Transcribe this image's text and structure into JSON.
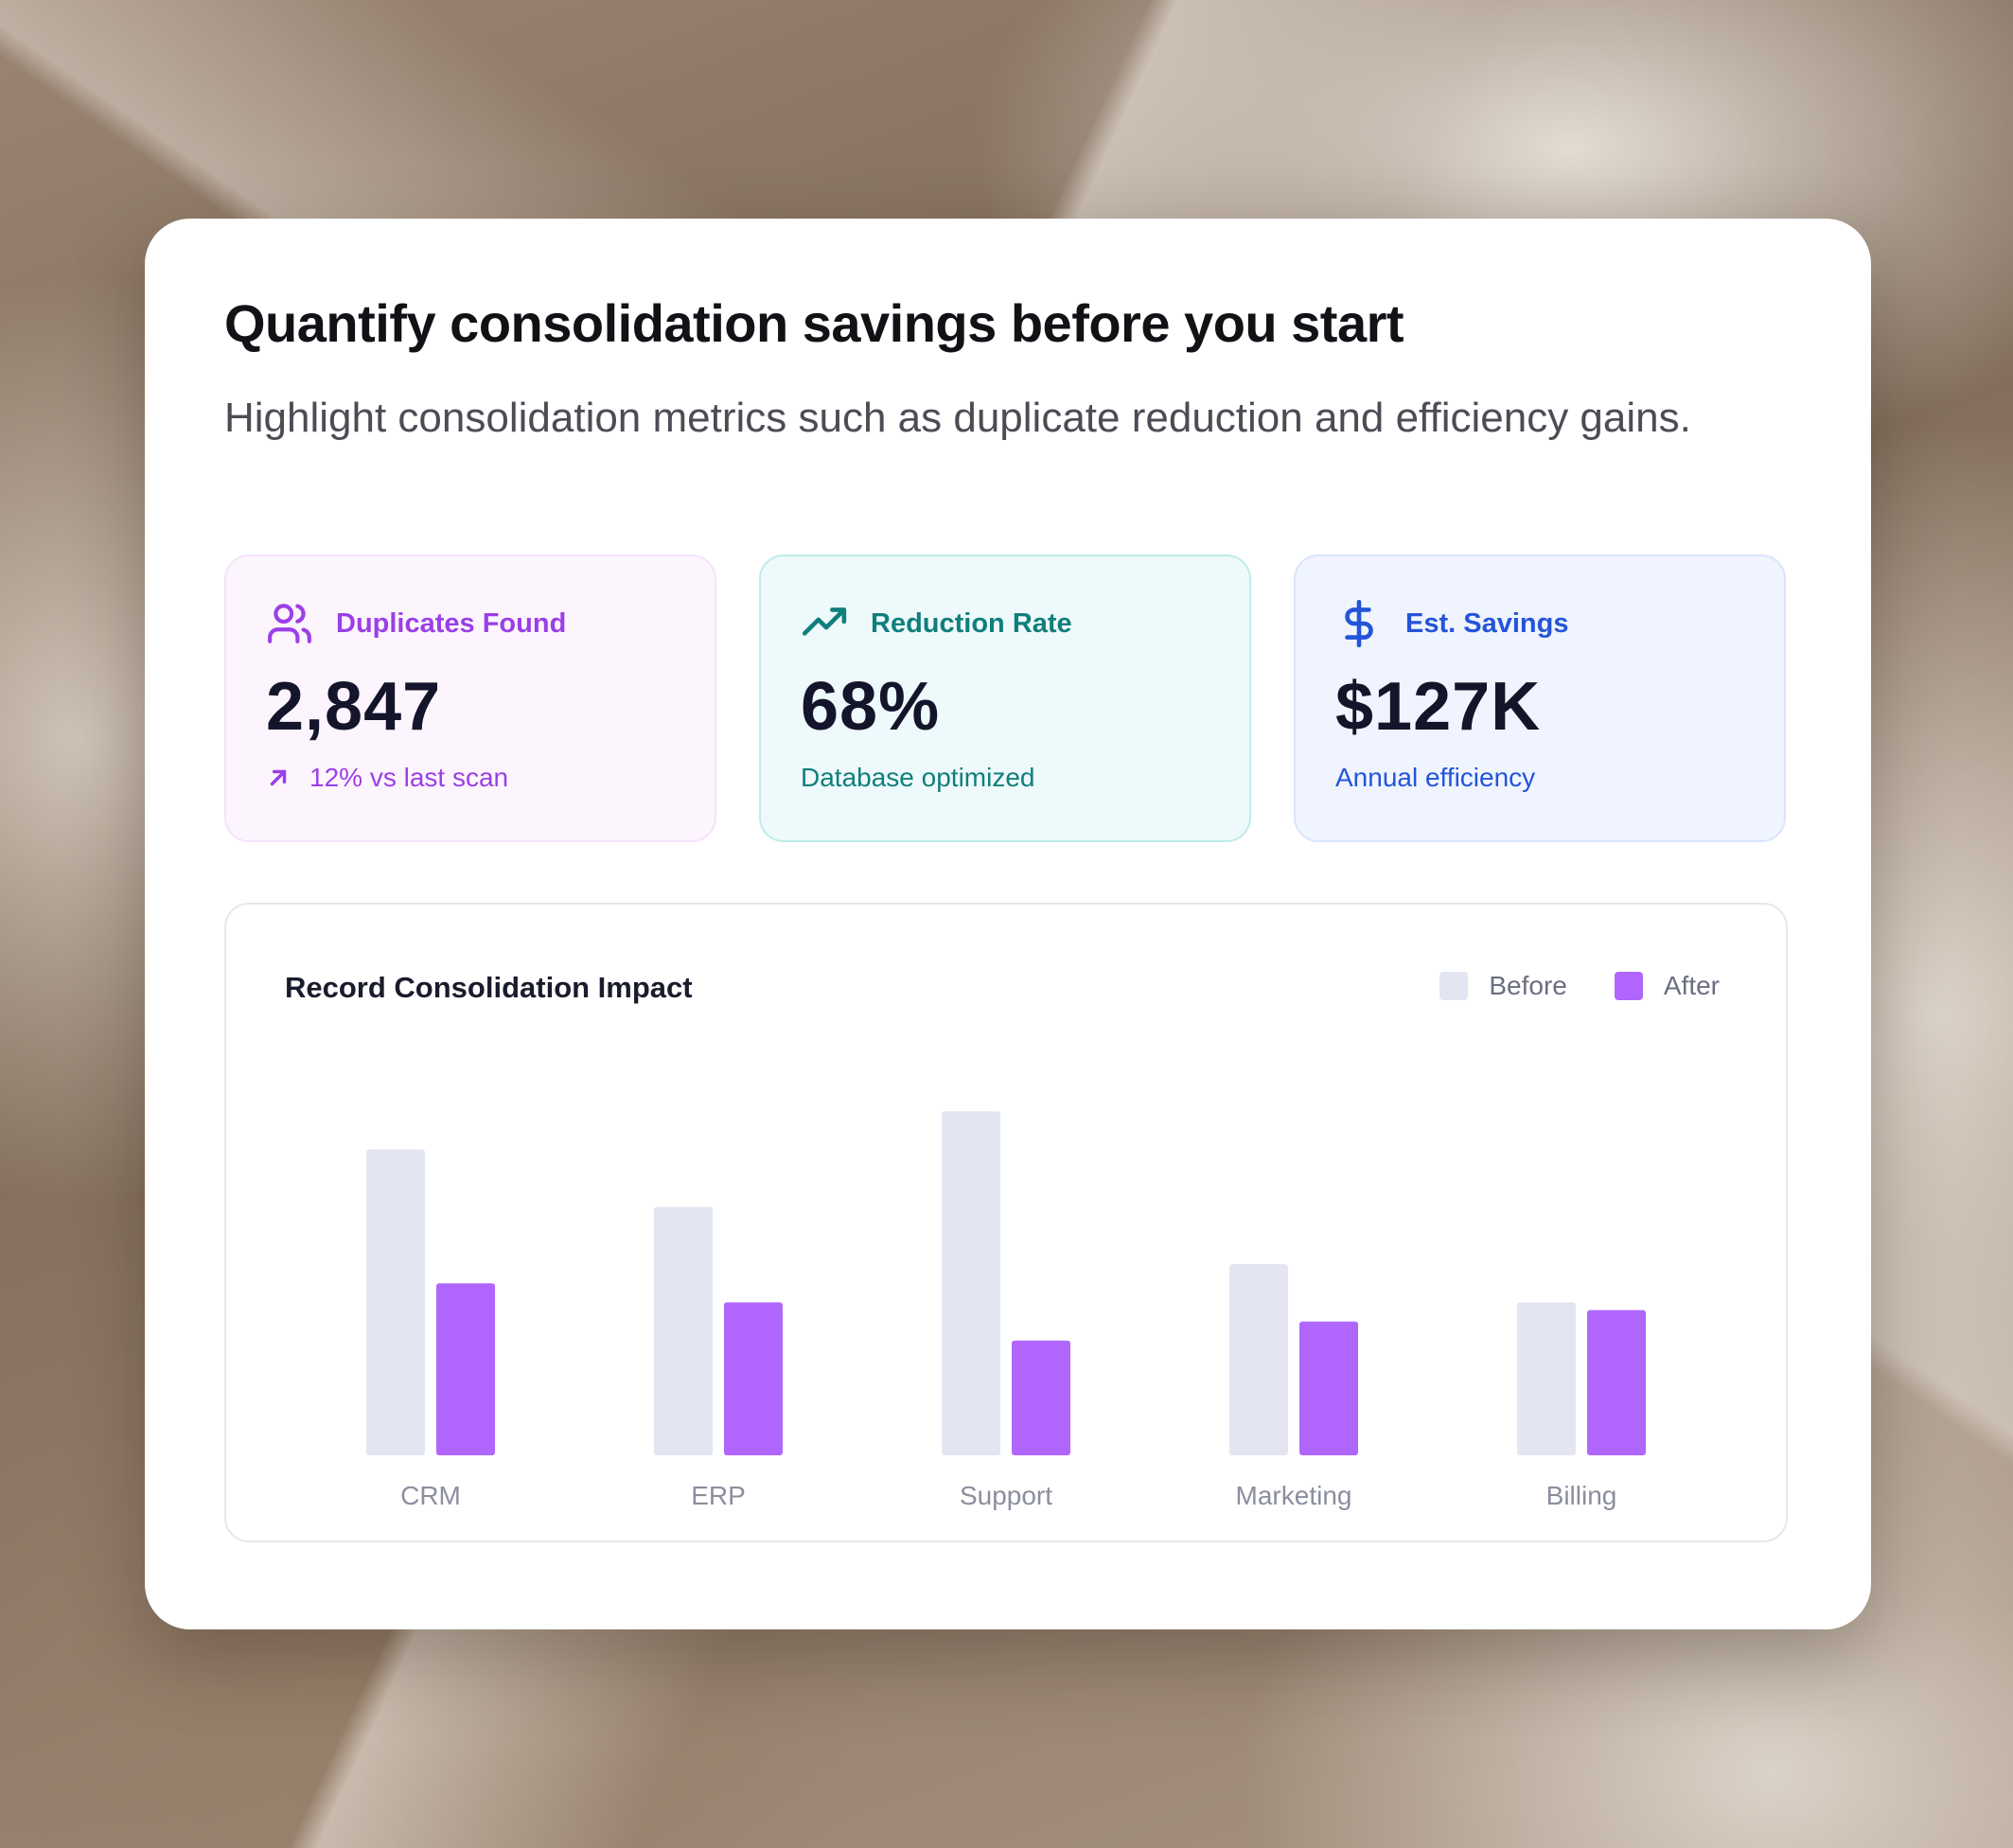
{
  "header": {
    "title": "Quantify consolidation savings before you start",
    "subtitle": "Highlight consolidation metrics such as duplicate reduction and efficiency gains."
  },
  "metrics": [
    {
      "icon": "users-icon",
      "label": "Duplicates Found",
      "value": "2,847",
      "footnote": "12% vs last scan",
      "footnote_icon": "arrow-up-right-icon",
      "accent": "#9b3fe6"
    },
    {
      "icon": "trending-up-icon",
      "label": "Reduction Rate",
      "value": "68%",
      "footnote": "Database optimized",
      "accent": "#0f7f7c"
    },
    {
      "icon": "dollar-icon",
      "label": "Est. Savings",
      "value": "$127K",
      "footnote": "Annual efficiency",
      "accent": "#2454d8"
    }
  ],
  "chart": {
    "title": "Record Consolidation Impact",
    "legend": [
      {
        "name": "Before",
        "color": "#e3e6f2"
      },
      {
        "name": "After",
        "color": "#b066fc"
      }
    ]
  },
  "chart_data": {
    "type": "bar",
    "title": "Record Consolidation Impact",
    "categories": [
      "CRM",
      "ERP",
      "Support",
      "Marketing",
      "Billing"
    ],
    "series": [
      {
        "name": "Before",
        "values": [
          80,
          65,
          90,
          50,
          40
        ],
        "color": "#e3e6f2"
      },
      {
        "name": "After",
        "values": [
          45,
          40,
          30,
          35,
          38
        ],
        "color": "#b066fc"
      }
    ],
    "ylim": [
      0,
      100
    ],
    "grid": false,
    "legend_position": "top-right"
  }
}
